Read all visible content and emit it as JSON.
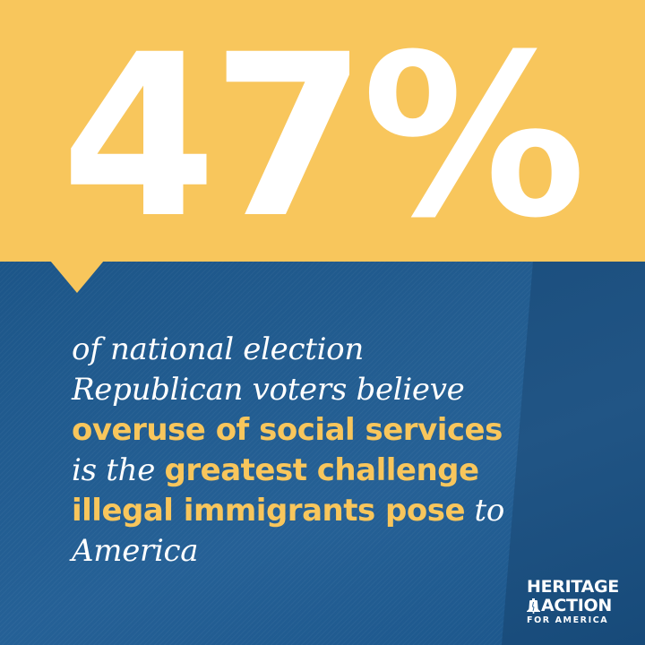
{
  "headline": {
    "stat": "47%"
  },
  "statement": {
    "line1": "of national election",
    "line2": "Republican voters believe",
    "line3": "overuse of social services",
    "line4_pre": "is the ",
    "line4_hl": "greatest challenge",
    "line5_hl": "illegal immigrants pose",
    "line5_post": " to",
    "line6": "America"
  },
  "logo": {
    "line1": "HERITAGE",
    "line2": "ACTION",
    "line3": "FOR AMERICA",
    "icon": "liberty-bell-icon"
  },
  "colors": {
    "accent_yellow": "#f8c65c",
    "background_blue": "#1d5a90",
    "text_white": "#ffffff"
  }
}
